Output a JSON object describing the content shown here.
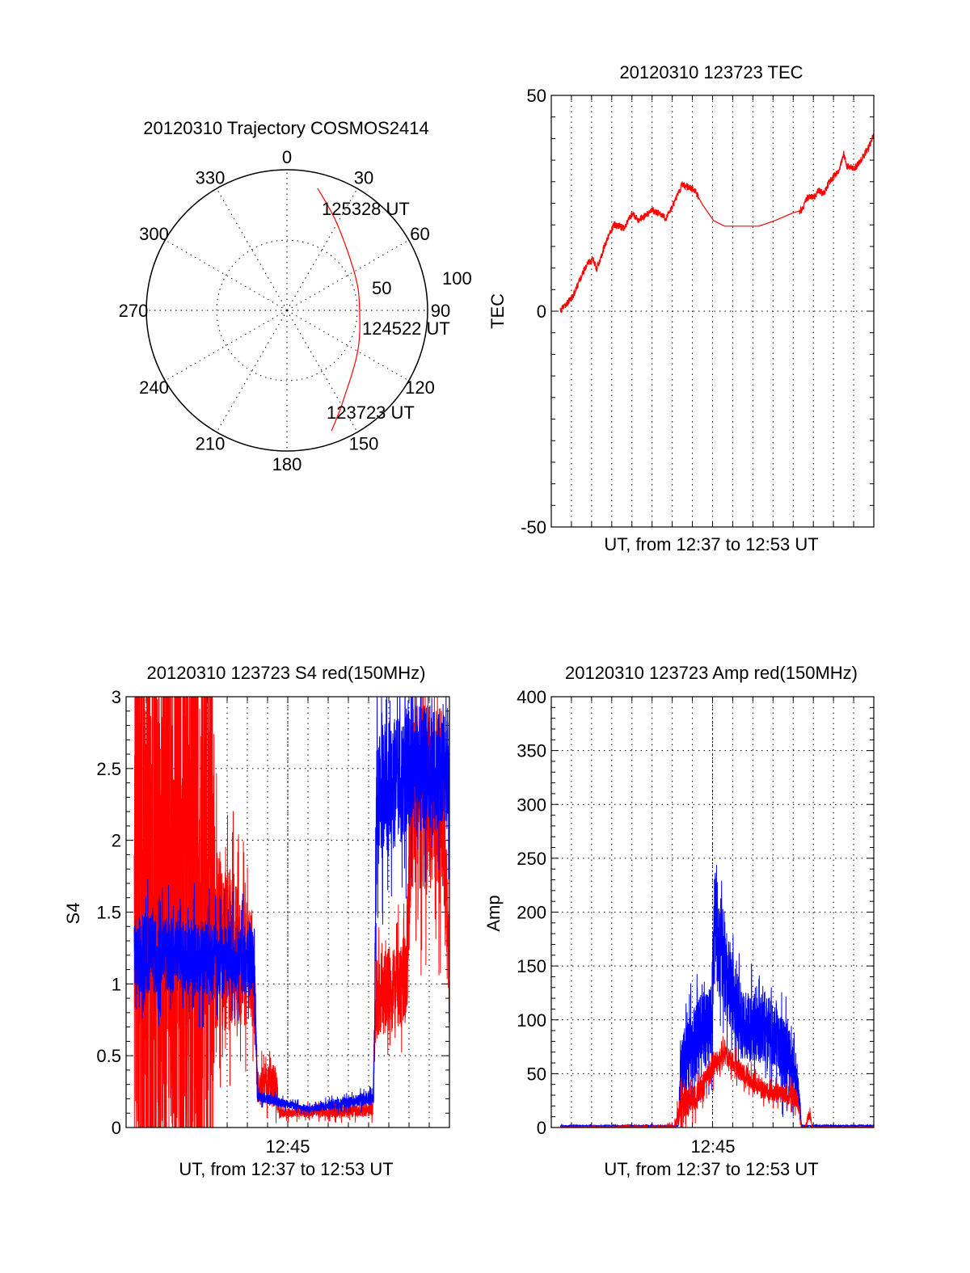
{
  "colors": {
    "red": "#ff0000",
    "blue": "#0000ff",
    "axis": "#000000"
  },
  "chart_data": [
    {
      "type": "polar",
      "title": "20120310 Trajectory COSMOS2414",
      "angle_labels": [
        "0",
        "30",
        "60",
        "90",
        "120",
        "150",
        "180",
        "210",
        "240",
        "270",
        "300",
        "330"
      ],
      "radial_labels": [
        "50",
        "100"
      ],
      "radial_max": 100,
      "grid": true,
      "trajectory": {
        "azimuth_deg": [
          159.7,
          149.6,
          121.4,
          92.0,
          64.2,
          30.1,
          14.1
        ],
        "radial": [
          91.3,
          77.3,
          58.6,
          51.7,
          54.2,
          71.1,
          89.5
        ],
        "color": "red"
      },
      "annotations": [
        "123723 UT",
        "124522 UT",
        "125328 UT"
      ]
    },
    {
      "type": "line",
      "title": "20120310 123723 TEC",
      "xlabel": "UT, from 12:37 to 12:53 UT",
      "ylabel": "TEC",
      "xlim_minutes": [
        0,
        16
      ],
      "ylim": [
        -50,
        50
      ],
      "yticks": [
        "50",
        "0",
        "-50"
      ],
      "ytick_values": [
        50,
        0,
        -50
      ],
      "grid": true,
      "series": [
        {
          "name": "TEC",
          "color": "red",
          "t": [
            0.45,
            1.1,
            1.7,
            2.05,
            2.25,
            2.7,
            3.1,
            3.6,
            4.05,
            4.3,
            5.05,
            5.7,
            6.05,
            6.5,
            7.1,
            7.5,
            8.05,
            8.6,
            10.3,
            11.1,
            12.0,
            12.45,
            12.65,
            13.1,
            13.25,
            13.5,
            13.8,
            14.3,
            14.5,
            14.65,
            15.05,
            15.3,
            15.8,
            16.0
          ],
          "values": [
            0,
            3.7,
            10.3,
            12.2,
            9.7,
            15.9,
            20,
            19.3,
            22.8,
            21,
            23.4,
            21.5,
            24.7,
            29.4,
            28.1,
            24.7,
            21,
            19.7,
            19.7,
            21,
            22.8,
            23.4,
            26.2,
            26.6,
            28.1,
            27.2,
            30,
            32.8,
            36.7,
            33.5,
            33.1,
            34.6,
            38.4,
            41
          ]
        }
      ]
    },
    {
      "type": "line",
      "title": "20120310 123723 S4 red(150MHz)",
      "xlabel": "UT, from 12:37 to 12:53 UT",
      "ylabel": "S4",
      "xtick": "12:45",
      "xtick_minute": 8,
      "xlim_minutes": [
        0,
        16
      ],
      "ylim": [
        0,
        3
      ],
      "yticks": [
        "0",
        "0.5",
        "1",
        "1.5",
        "2",
        "2.5",
        "3"
      ],
      "ytick_values": [
        0,
        0.5,
        1,
        1.5,
        2,
        2.5,
        3
      ],
      "grid": true,
      "series": [
        {
          "name": "red",
          "color": "red",
          "t": [
            0.4,
            4.2,
            4.4,
            6.3,
            6.5,
            7.4,
            7.6,
            12.2,
            12.35,
            13.9,
            14.1,
            15.7,
            16.0
          ],
          "mean": [
            1.5,
            1.5,
            1.3,
            1.1,
            0.28,
            0.3,
            0.1,
            0.12,
            0.9,
            1.05,
            2.3,
            2.3,
            1.0
          ],
          "spread": [
            3.0,
            3.0,
            0.8,
            0.5,
            0.15,
            0.2,
            0.04,
            0.06,
            0.35,
            0.4,
            0.8,
            0.8,
            0.5
          ]
        },
        {
          "name": "blue",
          "color": "blue",
          "t": [
            0.4,
            6.35,
            6.5,
            7.5,
            9.0,
            12.0,
            12.25,
            12.4,
            14.0,
            16.0
          ],
          "mean": [
            1.22,
            1.15,
            0.22,
            0.18,
            0.13,
            0.2,
            0.2,
            2.3,
            2.5,
            2.5
          ],
          "spread": [
            0.35,
            0.3,
            0.05,
            0.04,
            0.03,
            0.06,
            0.05,
            0.6,
            0.55,
            0.55
          ]
        }
      ]
    },
    {
      "type": "line",
      "title": "20120310 123723 Amp red(150MHz)",
      "xlabel": "UT, from 12:37 to 12:53 UT",
      "ylabel": "Amp",
      "xtick": "12:45",
      "xtick_minute": 8,
      "xlim_minutes": [
        0,
        16
      ],
      "ylim": [
        0,
        400
      ],
      "yticks": [
        "0",
        "50",
        "100",
        "150",
        "200",
        "250",
        "300",
        "350",
        "400"
      ],
      "ytick_values": [
        0,
        50,
        100,
        150,
        200,
        250,
        300,
        350,
        400
      ],
      "grid": true,
      "series": [
        {
          "name": "blue",
          "color": "blue",
          "t": [
            0.45,
            6.3,
            6.45,
            7.3,
            7.95,
            8.1,
            8.6,
            9.5,
            11.0,
            11.8,
            12.3,
            12.42,
            16.0
          ],
          "mean": [
            1.5,
            1.5,
            55,
            85,
            100,
            190,
            150,
            95,
            90,
            60,
            30,
            1.5,
            1.5
          ],
          "spread": [
            1,
            1,
            35,
            45,
            45,
            70,
            55,
            40,
            40,
            40,
            15,
            1,
            1
          ]
        },
        {
          "name": "red",
          "color": "red",
          "t": [
            0.45,
            6.1,
            6.45,
            7.3,
            7.95,
            8.6,
            9.5,
            10.5,
            12.2,
            12.4,
            12.6,
            12.8,
            12.95,
            16.0
          ],
          "mean": [
            0.3,
            0.3,
            20,
            30,
            55,
            68,
            50,
            35,
            28,
            0.3,
            0.3,
            14,
            0.3,
            0.3
          ],
          "spread": [
            0.3,
            3,
            20,
            15,
            15,
            12,
            12,
            10,
            12,
            0.3,
            0.3,
            8,
            0.3,
            0.3
          ]
        }
      ]
    }
  ]
}
